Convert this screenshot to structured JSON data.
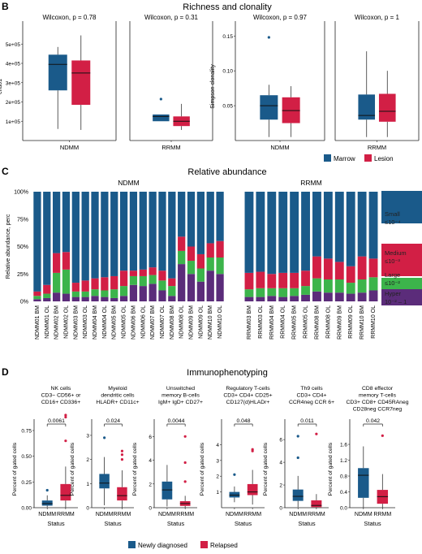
{
  "figure": {
    "colors": {
      "blue": "#1a5a8a",
      "red": "#d21f45",
      "green": "#3cb44b",
      "purple": "#5b2c7a",
      "axis": "#333333",
      "frame": "#222222"
    }
  },
  "panel_b": {
    "letter": "B",
    "title": "Richness and clonality",
    "legend": [
      {
        "label": "Marrow",
        "color": "#1a5a8a"
      },
      {
        "label": "Lesion",
        "color": "#d21f45"
      }
    ]
  },
  "panel_c": {
    "letter": "C",
    "title": "Relative abundance",
    "ylabel": "Relative abundance, perc",
    "yticks": [
      "0%",
      "25%",
      "50%",
      "75%",
      "100%"
    ],
    "legend": [
      {
        "label": "Small",
        "range": "≤10⁻⁴"
      },
      {
        "label": "Medium",
        "range": "≤10⁻³"
      },
      {
        "label": "Large",
        "range": "≤10⁻²"
      },
      {
        "label": "Hyper",
        "range": "10⁻² – 1"
      }
    ]
  },
  "panel_d": {
    "letter": "D",
    "title": "Immunophenotyping",
    "ylabel": "Percent of gated cells",
    "xlabel": "Status",
    "legend": [
      {
        "label": "Newly diagnosed",
        "color": "#1a5a8a"
      },
      {
        "label": "Relapsed",
        "color": "#d21f45"
      }
    ]
  },
  "chart_data": [
    {
      "type": "box",
      "panel": "B",
      "facet": "NDMM",
      "title": "Wilcoxon, p = 0.78",
      "ylabel": "chao1",
      "ylim": [
        0,
        560000
      ],
      "yticks": [
        100000,
        200000,
        300000,
        400000,
        500000
      ],
      "ytick_labels": [
        "1e+05",
        "2e+05",
        "3e+05",
        "4e+05",
        "5e+05"
      ],
      "categories": [
        "NDMM"
      ],
      "series": [
        {
          "name": "Marrow",
          "whislo": 60000,
          "q1": 260000,
          "median": 395000,
          "q3": 445000,
          "whishi": 485000,
          "outliers": []
        },
        {
          "name": "Lesion",
          "whislo": 55000,
          "q1": 185000,
          "median": 350000,
          "q3": 415000,
          "whishi": 545000,
          "outliers": []
        }
      ]
    },
    {
      "type": "box",
      "panel": "B",
      "facet": "RRMM",
      "title": "Wilcoxon, p = 0.31",
      "ylim": [
        0,
        560000
      ],
      "categories": [
        "RRMM"
      ],
      "series": [
        {
          "name": "Marrow",
          "whislo": 100000,
          "q1": 100000,
          "median": 125000,
          "q3": 135000,
          "whishi": 135000,
          "outliers": [
            215000
          ]
        },
        {
          "name": "Lesion",
          "whislo": 55000,
          "q1": 75000,
          "median": 100000,
          "q3": 125000,
          "whishi": 190000,
          "outliers": []
        }
      ]
    },
    {
      "type": "box",
      "panel": "B",
      "facet": "NDMM",
      "title": "Wilcoxon, p = 0.97",
      "ylabel": "Simpson clonality",
      "ylim": [
        0,
        0.155
      ],
      "yticks": [
        0.05,
        0.1,
        0.15
      ],
      "ytick_labels": [
        "0.05",
        "0.10",
        "0.15"
      ],
      "categories": [
        "NDMM"
      ],
      "series": [
        {
          "name": "Marrow",
          "whislo": 0.005,
          "q1": 0.03,
          "median": 0.05,
          "q3": 0.065,
          "whishi": 0.08,
          "outliers": [
            0.148
          ]
        },
        {
          "name": "Lesion",
          "whislo": 0.005,
          "q1": 0.025,
          "median": 0.043,
          "q3": 0.062,
          "whishi": 0.078,
          "outliers": []
        }
      ]
    },
    {
      "type": "box",
      "panel": "B",
      "facet": "RRMM",
      "title": "Wilcoxon, p = 1",
      "ylim": [
        0,
        0.155
      ],
      "categories": [
        "RRMM"
      ],
      "series": [
        {
          "name": "Marrow",
          "whislo": 0.005,
          "q1": 0.03,
          "median": 0.036,
          "q3": 0.066,
          "whishi": 0.128,
          "outliers": []
        },
        {
          "name": "Lesion",
          "whislo": 0.005,
          "q1": 0.027,
          "median": 0.042,
          "q3": 0.067,
          "whishi": 0.1,
          "outliers": []
        }
      ]
    },
    {
      "type": "bar",
      "stacked": true,
      "panel": "C",
      "facet": "NDMM",
      "ylim": [
        0,
        100
      ],
      "categories": [
        "NDMM01 BM",
        "NDMM01 OL",
        "NDMM02 BM",
        "NDMM02 OL",
        "NDMM03 BM",
        "NDMM03 OL",
        "NDMM04 BM",
        "NDMM04 OL",
        "NDMM05 BM",
        "NDMM05 OL",
        "NDMM06 BM",
        "NDMM06 OL",
        "NDMM07 BM",
        "NDMM07 OL",
        "NDMM08 BM",
        "NDMM08 OL",
        "NDMM09 BM",
        "NDMM09 OL",
        "NDMM10 BM",
        "NDMM10 OL"
      ],
      "series": [
        {
          "name": "Hyper",
          "values": [
            2,
            3,
            8,
            7,
            4,
            4,
            5,
            4,
            3,
            5,
            15,
            14,
            16,
            10,
            5,
            34,
            25,
            18,
            28,
            25
          ]
        },
        {
          "name": "Large",
          "values": [
            3,
            4,
            18,
            22,
            5,
            5,
            6,
            6,
            8,
            9,
            8,
            9,
            8,
            9,
            9,
            12,
            12,
            12,
            12,
            15
          ]
        },
        {
          "name": "Medium",
          "values": [
            4,
            8,
            18,
            16,
            8,
            10,
            10,
            12,
            12,
            14,
            5,
            6,
            7,
            9,
            7,
            13,
            13,
            13,
            13,
            15
          ]
        },
        {
          "name": "Small",
          "values": [
            91,
            85,
            56,
            55,
            83,
            81,
            79,
            78,
            77,
            72,
            72,
            71,
            69,
            72,
            79,
            41,
            50,
            57,
            47,
            45
          ]
        }
      ]
    },
    {
      "type": "bar",
      "stacked": true,
      "panel": "C",
      "facet": "RRMM",
      "ylim": [
        0,
        100
      ],
      "categories": [
        "RRMM03 BM",
        "RRMM03 OL",
        "RRMM04 BM",
        "RRMM04 OL",
        "RRMM05 BM",
        "RRMM05 OL",
        "RRMM08 BM",
        "RRMM08 OL",
        "RRMM09 BM",
        "RRMM09 OL",
        "RRMM10 BM",
        "RRMM10 OL"
      ],
      "series": [
        {
          "name": "Hyper",
          "values": [
            4,
            4,
            5,
            4,
            5,
            6,
            9,
            8,
            8,
            7,
            8,
            10
          ]
        },
        {
          "name": "Large",
          "values": [
            7,
            8,
            7,
            8,
            7,
            8,
            12,
            12,
            12,
            10,
            12,
            12
          ]
        },
        {
          "name": "Medium",
          "values": [
            15,
            15,
            13,
            14,
            14,
            14,
            20,
            19,
            16,
            15,
            21,
            17
          ]
        },
        {
          "name": "Small",
          "values": [
            74,
            73,
            75,
            74,
            74,
            72,
            59,
            61,
            64,
            68,
            59,
            61
          ]
        }
      ]
    },
    {
      "type": "box",
      "panel": "D",
      "title": "NK cells\nCD3− CD56+ or\nCD16+ CD336+",
      "pvalue": "0.0061",
      "ylim": [
        0,
        0.75
      ],
      "yticks": [
        0,
        0.25,
        0.5,
        0.75
      ],
      "ytick_labels": [
        "0.00",
        "0.25",
        "0.50",
        "0.75"
      ],
      "categories": [
        "NDMM",
        "RRMM"
      ],
      "series": [
        {
          "name": "Newly diagnosed",
          "whislo": 0.005,
          "q1": 0.02,
          "median": 0.04,
          "q3": 0.07,
          "whishi": 0.12,
          "outliers": [
            0.17
          ]
        },
        {
          "name": "Relapsed",
          "whislo": 0.0,
          "q1": 0.07,
          "median": 0.12,
          "q3": 0.23,
          "whishi": 0.4,
          "outliers": [
            0.65,
            0.88,
            0.9
          ]
        }
      ]
    },
    {
      "type": "box",
      "panel": "D",
      "title": "Myeloid\ndendritic cells\nHLADR+ CD11c+",
      "pvalue": "0.024",
      "ylim": [
        0,
        3.2
      ],
      "yticks": [
        0,
        1,
        2,
        3
      ],
      "ytick_labels": [
        "0",
        "1",
        "2",
        "3"
      ],
      "categories": [
        "NDMM",
        "RRMM"
      ],
      "series": [
        {
          "name": "Newly diagnosed",
          "whislo": 0.1,
          "q1": 0.8,
          "median": 1.02,
          "q3": 1.4,
          "whishi": 2.1,
          "outliers": [
            2.9
          ]
        },
        {
          "name": "Relapsed",
          "whislo": 0.0,
          "q1": 0.3,
          "median": 0.5,
          "q3": 0.85,
          "whishi": 1.55,
          "outliers": [
            2.0,
            2.2,
            2.35
          ]
        }
      ]
    },
    {
      "type": "box",
      "panel": "D",
      "title": "Unswitched\nmemory B-cells\nIgM+ IgD+ CD27+",
      "pvalue": "0.0044",
      "ylim": [
        0,
        6.5
      ],
      "yticks": [
        0,
        2,
        4,
        6
      ],
      "ytick_labels": [
        "0",
        "2",
        "4",
        "6"
      ],
      "categories": [
        "NDMM",
        "RRMM"
      ],
      "series": [
        {
          "name": "Newly diagnosed",
          "whislo": 0.1,
          "q1": 0.7,
          "median": 1.5,
          "q3": 2.2,
          "whishi": 3.6,
          "outliers": []
        },
        {
          "name": "Relapsed",
          "whislo": 0.0,
          "q1": 0.15,
          "median": 0.35,
          "q3": 0.55,
          "whishi": 1.0,
          "outliers": [
            2.2,
            3.8,
            6.0
          ]
        }
      ]
    },
    {
      "type": "box",
      "panel": "D",
      "title": "Regulatory T-cells\nCD3+ CD4+ CD25+\nCD127(d)HLADr+",
      "pvalue": "0.048",
      "ylim": [
        0,
        4.9
      ],
      "yticks": [
        1,
        2,
        3,
        4
      ],
      "ytick_labels": [
        "1",
        "2",
        "3",
        "4"
      ],
      "categories": [
        "NDMM",
        "RRMM"
      ],
      "series": [
        {
          "name": "Newly diagnosed",
          "whislo": 0.35,
          "q1": 0.65,
          "median": 0.8,
          "q3": 1.0,
          "whishi": 1.35,
          "outliers": [
            2.1
          ]
        },
        {
          "name": "Relapsed",
          "whislo": 0.2,
          "q1": 0.8,
          "median": 1.0,
          "q3": 1.5,
          "whishi": 2.4,
          "outliers": [
            3.6,
            3.7
          ]
        }
      ]
    },
    {
      "type": "box",
      "panel": "D",
      "title": "Th9 cells\nCD3+ CD4+\nCCR4neg CCR 6+",
      "pvalue": "0.011",
      "ylim": [
        0,
        6.8
      ],
      "yticks": [
        0,
        2,
        4,
        6
      ],
      "ytick_labels": [
        "0",
        "2",
        "4",
        "6"
      ],
      "categories": [
        "NDMM",
        "RRMM"
      ],
      "series": [
        {
          "name": "Newly diagnosed",
          "whislo": 0.05,
          "q1": 0.6,
          "median": 1.0,
          "q3": 1.6,
          "whishi": 2.8,
          "outliers": [
            4.4,
            6.3
          ]
        },
        {
          "name": "Relapsed",
          "whislo": 0.0,
          "q1": 0.05,
          "median": 0.2,
          "q3": 0.65,
          "whishi": 1.2,
          "outliers": [
            6.5
          ]
        }
      ]
    },
    {
      "type": "box",
      "panel": "D",
      "title": "CD8 effector\nmemory T-cells\nCD3+ CD8+ CD45RAneg\nCD28neg CCR7neg",
      "pvalue": "0.042",
      "ylim": [
        0,
        1.95
      ],
      "yticks": [
        0,
        0.4,
        0.8,
        1.2,
        1.6
      ],
      "ytick_labels": [
        "0.0",
        "0.4",
        "0.8",
        "1.2",
        "1.6"
      ],
      "categories": [
        "NDMM",
        "RRMM"
      ],
      "series": [
        {
          "name": "Newly diagnosed",
          "whislo": 0.0,
          "q1": 0.25,
          "median": 0.82,
          "q3": 1.0,
          "whishi": 1.55,
          "outliers": []
        },
        {
          "name": "Relapsed",
          "whislo": 0.0,
          "q1": 0.1,
          "median": 0.28,
          "q3": 0.45,
          "whishi": 0.85,
          "outliers": [
            1.82
          ]
        }
      ]
    }
  ]
}
